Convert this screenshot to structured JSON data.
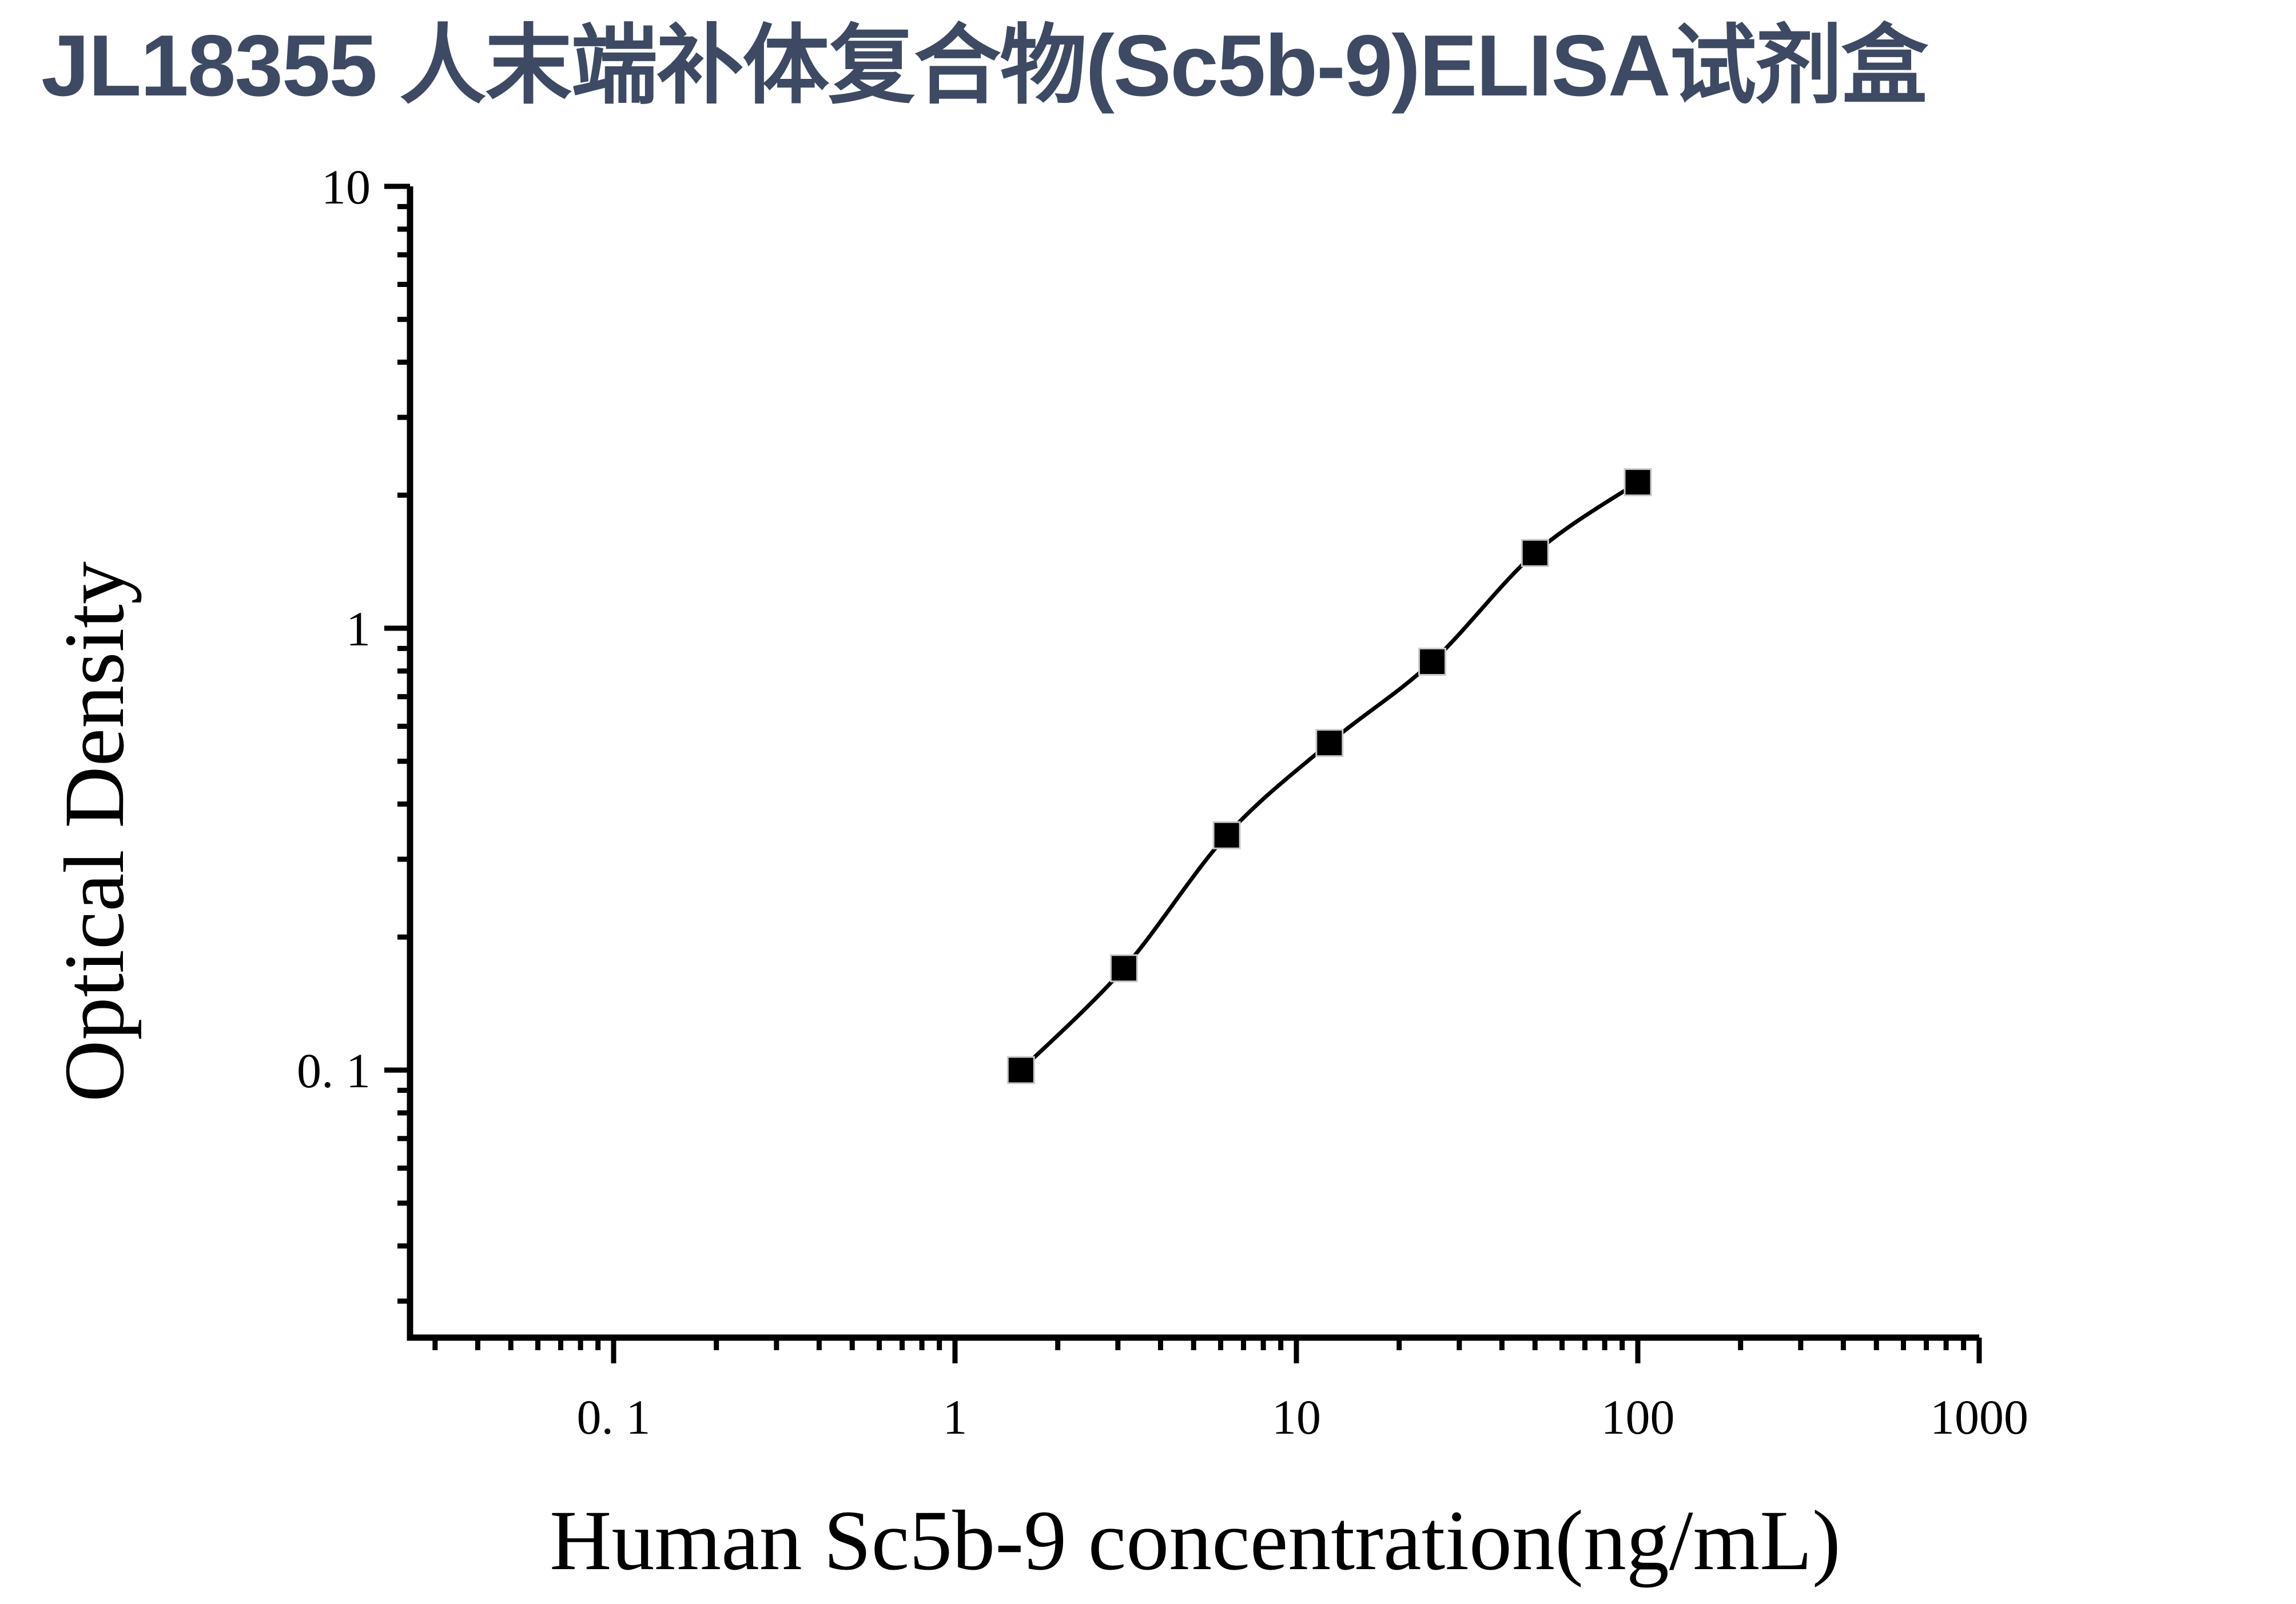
{
  "title": {
    "text": "JL18355 人末端补体复合物(Sc5b-9)ELISA试剂盒",
    "color": "#3e4a63"
  },
  "chart_data": {
    "type": "line",
    "x": [
      1.56,
      3.125,
      6.25,
      12.5,
      25,
      50,
      100
    ],
    "y": [
      0.1,
      0.17,
      0.34,
      0.55,
      0.84,
      1.48,
      2.14
    ],
    "xlabel": "Human Sc5b-9 concentration(ng/mL)",
    "ylabel": "Optical Density",
    "x_scale": "log",
    "y_scale": "log",
    "xlim": [
      0.025,
      1000
    ],
    "ylim": [
      0.025,
      10
    ],
    "x_ticks": [
      {
        "value": 0.1,
        "label": "0. 1"
      },
      {
        "value": 1,
        "label": "1"
      },
      {
        "value": 10,
        "label": "10"
      },
      {
        "value": 100,
        "label": "100"
      },
      {
        "value": 1000,
        "label": "1000"
      }
    ],
    "y_ticks": [
      {
        "value": 10,
        "label": "10"
      },
      {
        "value": 1,
        "label": "1"
      },
      {
        "value": 0.1,
        "label": "0. 1"
      }
    ],
    "grid": false,
    "legend_position": "none",
    "marker": "filled-square",
    "marker_color": "#000000",
    "line_color": "#000000",
    "axis_color": "#000000"
  }
}
